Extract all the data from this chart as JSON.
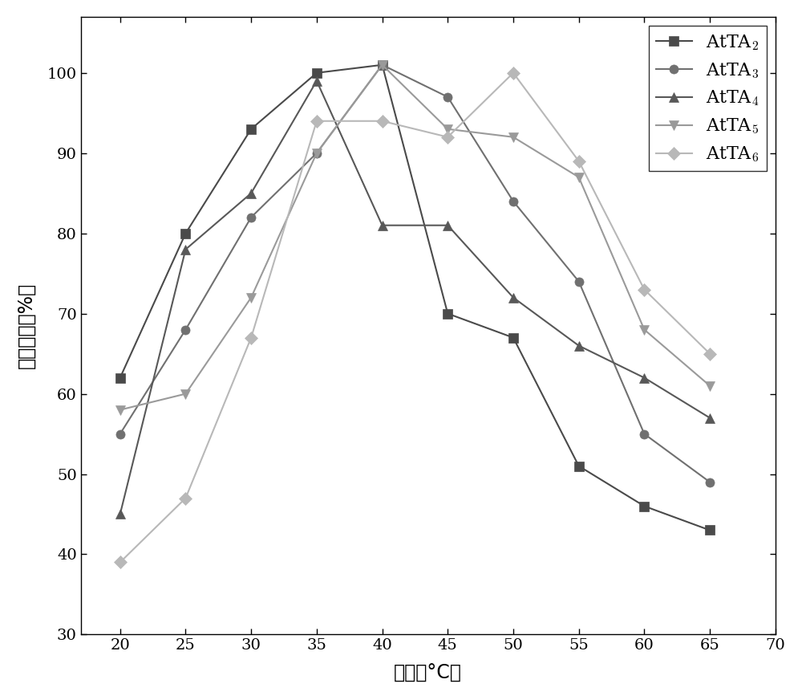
{
  "x": [
    20,
    25,
    30,
    35,
    40,
    45,
    50,
    55,
    60,
    65
  ],
  "series": [
    {
      "label": "AtTA$_2$",
      "y": [
        62,
        80,
        93,
        100,
        101,
        70,
        67,
        51,
        46,
        43
      ],
      "color": "#4a4a4a",
      "marker": "s",
      "markersize": 8
    },
    {
      "label": "AtTA$_3$",
      "y": [
        55,
        68,
        82,
        90,
        101,
        97,
        84,
        74,
        55,
        49
      ],
      "color": "#707070",
      "marker": "o",
      "markersize": 8
    },
    {
      "label": "AtTA$_4$",
      "y": [
        45,
        78,
        85,
        99,
        81,
        81,
        72,
        66,
        62,
        57
      ],
      "color": "#585858",
      "marker": "^",
      "markersize": 8
    },
    {
      "label": "AtTA$_5$",
      "y": [
        58,
        60,
        72,
        90,
        101,
        93,
        92,
        87,
        68,
        61
      ],
      "color": "#9a9a9a",
      "marker": "v",
      "markersize": 8
    },
    {
      "label": "AtTA$_6$",
      "y": [
        39,
        47,
        67,
        94,
        94,
        92,
        100,
        89,
        73,
        65
      ],
      "color": "#b8b8b8",
      "marker": "D",
      "markersize": 8
    }
  ],
  "xlim": [
    17,
    70
  ],
  "ylim": [
    30,
    107
  ],
  "xticks": [
    20,
    25,
    30,
    35,
    40,
    45,
    50,
    55,
    60,
    65,
    70
  ],
  "yticks": [
    30,
    40,
    50,
    60,
    70,
    80,
    90,
    100
  ],
  "xlabel": "温度（°C）",
  "ylabel": "相对酶活（%）",
  "legend_loc": "upper right",
  "linewidth": 1.5,
  "figsize": [
    10.0,
    8.72
  ],
  "dpi": 100
}
